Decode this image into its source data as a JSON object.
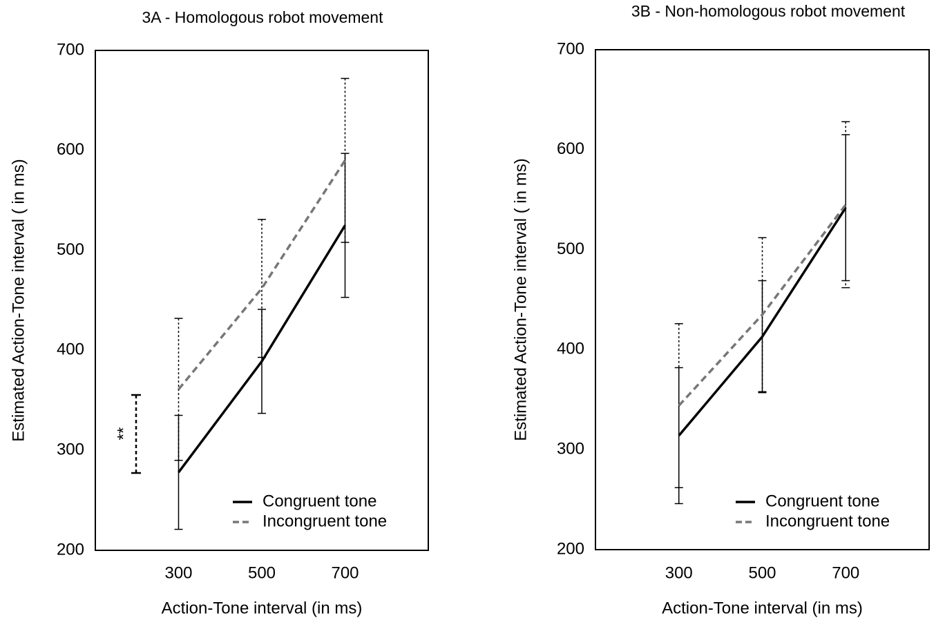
{
  "chart_data": [
    {
      "type": "line",
      "title": "3A - Homologous robot movement",
      "xlabel": "Action-Tone interval (in ms)",
      "ylabel": "Estimated Action-Tone interval ( in ms)",
      "x": [
        300,
        500,
        700
      ],
      "xlim": [
        100,
        900
      ],
      "xticks": [
        300,
        500,
        700
      ],
      "ylim": [
        200,
        700
      ],
      "yticks": [
        200,
        300,
        400,
        500,
        600,
        700
      ],
      "legend": "lower right",
      "annotation": "**",
      "series": [
        {
          "name": "Congruent tone",
          "color": "#000000",
          "dash": "solid",
          "values": [
            278,
            389,
            525
          ],
          "errors": [
            57,
            52,
            72
          ]
        },
        {
          "name": "Incongruent tone",
          "color": "#777777",
          "dash": "dashed",
          "values": [
            361,
            462,
            590
          ],
          "errors": [
            71,
            69,
            82
          ]
        }
      ]
    },
    {
      "type": "line",
      "title": "3B - Non-homologous robot movement",
      "xlabel": "Action-Tone interval (in ms)",
      "ylabel": "Estimated Action-Tone interval ( in ms)",
      "x": [
        300,
        500,
        700
      ],
      "xlim": [
        100,
        900
      ],
      "xticks": [
        300,
        500,
        700
      ],
      "ylim": [
        200,
        700
      ],
      "yticks": [
        200,
        300,
        400,
        500,
        600,
        700
      ],
      "legend": "lower right",
      "series": [
        {
          "name": "Congruent tone",
          "color": "#000000",
          "dash": "solid",
          "values": [
            314,
            413,
            542
          ],
          "errors": [
            68,
            56,
            73
          ]
        },
        {
          "name": "Incongruent tone",
          "color": "#777777",
          "dash": "dashed",
          "values": [
            344,
            435,
            545
          ],
          "errors": [
            82,
            77,
            83
          ]
        }
      ]
    }
  ]
}
